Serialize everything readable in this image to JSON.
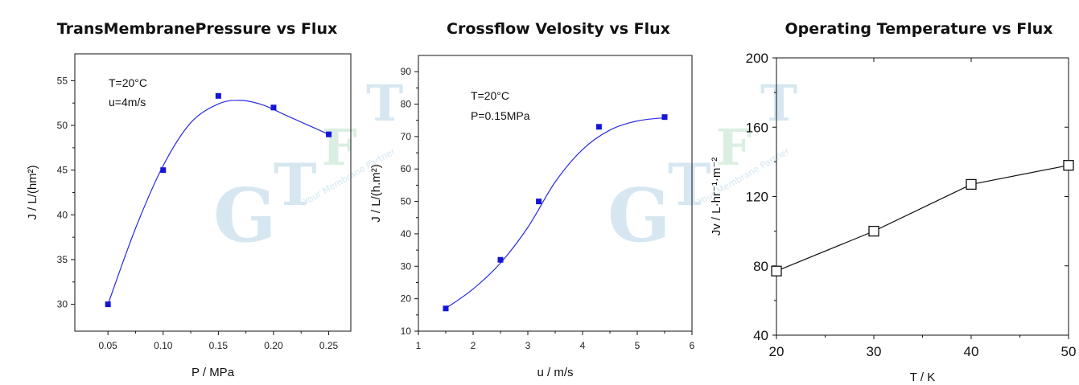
{
  "watermark": {
    "letters": [
      "G",
      "T",
      "F",
      "T"
    ],
    "tagline": "Your Membrane Partner",
    "colors": [
      "#cfe3ef",
      "#d4ecdc"
    ]
  },
  "chart_data": [
    {
      "type": "scatter",
      "title": "TransMembranePressure vs Flux",
      "xlabel": "P  /  MPa",
      "ylabel": "J  /  L/(hm²)",
      "xlim": [
        0.02,
        0.27
      ],
      "ylim": [
        27,
        58
      ],
      "xticks": [
        0.05,
        0.1,
        0.15,
        0.2,
        0.25
      ],
      "xtick_labels": [
        "0.05",
        "0.10",
        "0.15",
        "0.20",
        "0.25"
      ],
      "yticks": [
        30,
        35,
        40,
        45,
        50,
        55
      ],
      "ytick_labels": [
        "30",
        "35",
        "40",
        "45",
        "50",
        "55"
      ],
      "annotations": [
        "T=20°C",
        "u=4m/s"
      ],
      "points": [
        [
          0.05,
          30
        ],
        [
          0.1,
          45
        ],
        [
          0.15,
          53.3
        ],
        [
          0.2,
          52
        ],
        [
          0.25,
          49
        ]
      ],
      "fit_curve": [
        [
          0.05,
          30
        ],
        [
          0.075,
          38.5
        ],
        [
          0.1,
          45.5
        ],
        [
          0.125,
          50.3
        ],
        [
          0.15,
          52.4
        ],
        [
          0.17,
          52.8
        ],
        [
          0.19,
          52.3
        ],
        [
          0.21,
          51.2
        ],
        [
          0.23,
          50.1
        ],
        [
          0.25,
          49
        ]
      ],
      "marker": "filled-square",
      "color": "#1515d8",
      "grid": false
    },
    {
      "type": "scatter",
      "title": "Crossflow Velosity vs Flux",
      "xlabel": "u    /    m/s",
      "ylabel": "J   /   L/(h.m²)",
      "xlim": [
        1,
        6
      ],
      "ylim": [
        10,
        95
      ],
      "xticks": [
        1,
        2,
        3,
        4,
        5,
        6
      ],
      "xtick_labels": [
        "1",
        "2",
        "3",
        "4",
        "5",
        "6"
      ],
      "yticks": [
        10,
        20,
        30,
        40,
        50,
        60,
        70,
        80,
        90
      ],
      "ytick_labels": [
        "10",
        "20",
        "30",
        "40",
        "50",
        "60",
        "70",
        "80",
        "90"
      ],
      "annotations": [
        "T=20°C",
        "P=0.15MPa"
      ],
      "points": [
        [
          1.5,
          17
        ],
        [
          2.5,
          32
        ],
        [
          3.2,
          50
        ],
        [
          4.3,
          73
        ],
        [
          5.5,
          76
        ]
      ],
      "fit_curve": [
        [
          1.5,
          17
        ],
        [
          2.0,
          23
        ],
        [
          2.5,
          31
        ],
        [
          3.0,
          42
        ],
        [
          3.5,
          56
        ],
        [
          4.0,
          66
        ],
        [
          4.5,
          72
        ],
        [
          5.0,
          74.8
        ],
        [
          5.5,
          75.8
        ]
      ],
      "marker": "filled-square",
      "color": "#1515d8",
      "grid": false
    },
    {
      "type": "line",
      "title": "Operating Temperature vs Flux",
      "xlabel": "T / K",
      "ylabel": "Jv / L·hr⁻¹·m⁻²",
      "xlim": [
        20,
        50
      ],
      "ylim": [
        40,
        200
      ],
      "xticks": [
        20,
        30,
        40,
        50
      ],
      "xtick_labels": [
        "20",
        "30",
        "40",
        "50"
      ],
      "yticks": [
        40,
        80,
        120,
        160,
        200
      ],
      "ytick_labels": [
        "40",
        "80",
        "120",
        "160",
        "200"
      ],
      "x": [
        20,
        30,
        40,
        50
      ],
      "values": [
        77,
        100,
        127,
        138
      ],
      "marker": "open-square",
      "color": "#111111",
      "grid": false
    }
  ]
}
